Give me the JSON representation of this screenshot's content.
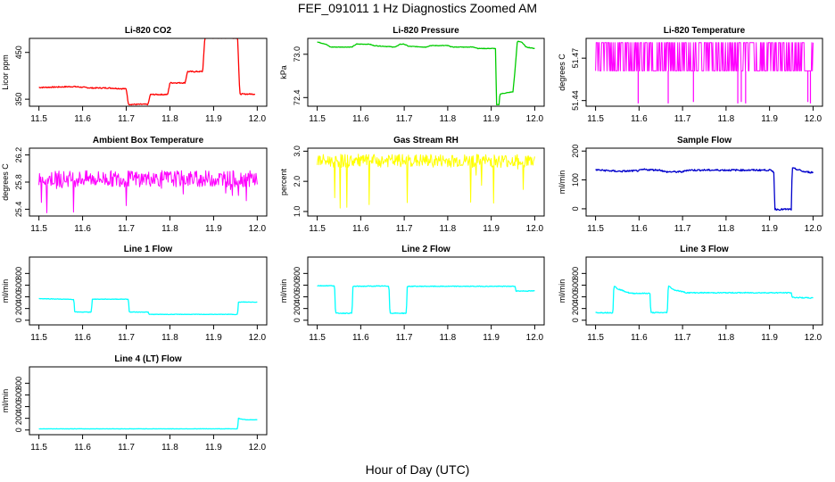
{
  "figure": {
    "title": "FEF_091011  1 Hz Diagnostics Zoomed AM",
    "xlabel": "Hour of Day (UTC)"
  },
  "chart_data": [
    {
      "type": "line",
      "title": "Li-820 CO2",
      "ylabel": "Licor ppm",
      "xlim": [
        11.5,
        12.0
      ],
      "xticks": [
        "11.5",
        "11.6",
        "11.7",
        "11.8",
        "11.9",
        "12.0"
      ],
      "ylim": [
        335,
        480
      ],
      "yticks": [
        "350",
        "450"
      ],
      "color": "#ff0000",
      "noise": 1.2,
      "series": [
        {
          "x": [
            11.5,
            11.54,
            11.58,
            11.62,
            11.66,
            11.7,
            11.705,
            11.75,
            11.755,
            11.795,
            11.8,
            11.835,
            11.84,
            11.875,
            11.88,
            11.955,
            11.96,
            11.995
          ],
          "y": [
            375,
            376,
            377,
            374,
            374,
            372,
            339,
            339,
            360,
            360,
            385,
            385,
            409,
            409,
            481,
            481,
            361,
            361
          ]
        }
      ]
    },
    {
      "type": "line",
      "title": "Li-820 Pressure",
      "ylabel": "kPa",
      "xlim": [
        11.5,
        12.0
      ],
      "xticks": [
        "11.5",
        "11.6",
        "11.7",
        "11.8",
        "11.9",
        "12.0"
      ],
      "ylim": [
        72.28,
        73.22
      ],
      "yticks": [
        "72.4",
        "73.0"
      ],
      "color": "#00cc00",
      "noise": 0.004,
      "series": [
        {
          "x": [
            11.5,
            11.52,
            11.53,
            11.58,
            11.59,
            11.62,
            11.63,
            11.68,
            11.69,
            11.7,
            11.71,
            11.75,
            11.76,
            11.8,
            11.81,
            11.86,
            11.87,
            11.9,
            11.91,
            11.912,
            11.918,
            11.92,
            11.95,
            11.955,
            11.96,
            11.97,
            11.98,
            12.0
          ],
          "y": [
            73.17,
            73.14,
            73.1,
            73.1,
            73.14,
            73.14,
            73.12,
            73.1,
            73.14,
            73.14,
            73.11,
            73.1,
            73.12,
            73.12,
            73.1,
            73.1,
            73.08,
            73.08,
            73.08,
            72.3,
            72.3,
            72.45,
            72.48,
            72.8,
            73.18,
            73.17,
            73.1,
            73.08
          ]
        }
      ]
    },
    {
      "type": "line",
      "title": "Li-820 Temperature",
      "ylabel": "degrees C",
      "xlim": [
        11.5,
        12.0
      ],
      "xticks": [
        "11.5",
        "11.6",
        "11.7",
        "11.8",
        "11.9",
        "12.0"
      ],
      "ylim": [
        51.436,
        51.484
      ],
      "yticks": [
        "51.44",
        "51.47"
      ],
      "color": "#ff00ff",
      "style": "flicker",
      "base": 51.461,
      "high": 51.481,
      "dips": [
        [
          11.598,
          51.438
        ],
        [
          11.667,
          51.438
        ],
        [
          11.725,
          51.439
        ],
        [
          11.827,
          51.438
        ],
        [
          11.835,
          51.439
        ],
        [
          11.845,
          51.438
        ],
        [
          11.988,
          51.439
        ],
        [
          11.994,
          51.438
        ]
      ],
      "series": [
        {
          "x": [
            11.5,
            12.0
          ],
          "y": [
            51.461,
            51.461
          ]
        }
      ]
    },
    {
      "type": "line",
      "title": "Ambient Box Temperature",
      "ylabel": "degrees C",
      "xlim": [
        11.5,
        12.0
      ],
      "xticks": [
        "11.5",
        "11.6",
        "11.7",
        "11.8",
        "11.9",
        "12.0"
      ],
      "ylim": [
        25.3,
        26.3
      ],
      "yticks": [
        "25.4",
        "25.8",
        "26.2"
      ],
      "color": "#ff00ff",
      "style": "noise",
      "amp": 0.12,
      "spike_amp": 0.4,
      "series": [
        {
          "x": [
            11.5,
            12.0
          ],
          "y": [
            25.85,
            25.85
          ]
        }
      ]
    },
    {
      "type": "line",
      "title": "Gas Stream RH",
      "ylabel": "percent",
      "xlim": [
        11.5,
        12.0
      ],
      "xticks": [
        "11.5",
        "11.6",
        "11.7",
        "11.8",
        "11.9",
        "12.0"
      ],
      "ylim": [
        0.85,
        3.1
      ],
      "yticks": [
        "1.0",
        "2.0",
        "3.0"
      ],
      "color": "#ffff00",
      "style": "noise",
      "amp": 0.22,
      "spike_amp": 1.5,
      "series": [
        {
          "x": [
            11.5,
            12.0
          ],
          "y": [
            2.68,
            2.68
          ]
        }
      ]
    },
    {
      "type": "line",
      "title": "Sample Flow",
      "ylabel": "ml/min",
      "xlim": [
        11.5,
        12.0
      ],
      "xticks": [
        "11.5",
        "11.6",
        "11.7",
        "11.8",
        "11.9",
        "12.0"
      ],
      "ylim": [
        -25,
        210
      ],
      "yticks": [
        "0",
        "100",
        "200"
      ],
      "color": "#0000cc",
      "noise": 3,
      "series": [
        {
          "x": [
            11.5,
            11.55,
            11.56,
            11.6,
            11.61,
            11.65,
            11.66,
            11.7,
            11.71,
            11.9,
            11.91,
            11.912,
            11.95,
            11.952,
            11.96,
            11.98,
            12.0
          ],
          "y": [
            135,
            130,
            130,
            132,
            136,
            134,
            128,
            128,
            134,
            134,
            128,
            -2,
            -2,
            140,
            138,
            128,
            126
          ]
        }
      ]
    },
    {
      "type": "line",
      "title": "Line 1 Flow",
      "ylabel": "ml/min",
      "xlim": [
        11.5,
        12.0
      ],
      "xticks": [
        "11.5",
        "11.6",
        "11.7",
        "11.8",
        "11.9",
        "12.0"
      ],
      "ylim": [
        -80,
        1080
      ],
      "yticks": [
        "0",
        "200",
        "400",
        "600",
        "800"
      ],
      "color": "#00ffff",
      "noise": 4,
      "series": [
        {
          "x": [
            11.5,
            11.58,
            11.582,
            11.62,
            11.622,
            11.705,
            11.707,
            11.75,
            11.752,
            11.955,
            11.957,
            12.0
          ],
          "y": [
            370,
            355,
            140,
            140,
            360,
            360,
            140,
            140,
            100,
            100,
            310,
            310
          ]
        }
      ]
    },
    {
      "type": "line",
      "title": "Line 2 Flow",
      "ylabel": "ml/min",
      "xlim": [
        11.5,
        12.0
      ],
      "xticks": [
        "11.5",
        "11.6",
        "11.7",
        "11.8",
        "11.9",
        "12.0"
      ],
      "ylim": [
        -80,
        1080
      ],
      "yticks": [
        "0",
        "200",
        "400",
        "600",
        "800"
      ],
      "color": "#00ffff",
      "noise": 6,
      "series": [
        {
          "x": [
            11.5,
            11.54,
            11.542,
            11.58,
            11.582,
            11.665,
            11.667,
            11.705,
            11.707,
            11.955,
            11.957,
            12.0
          ],
          "y": [
            590,
            590,
            120,
            120,
            580,
            585,
            120,
            120,
            580,
            580,
            500,
            500
          ]
        }
      ]
    },
    {
      "type": "line",
      "title": "Line 3 Flow",
      "ylabel": "ml/min",
      "xlim": [
        11.5,
        12.0
      ],
      "xticks": [
        "11.5",
        "11.6",
        "11.7",
        "11.8",
        "11.9",
        "12.0"
      ],
      "ylim": [
        -80,
        1080
      ],
      "yticks": [
        "0",
        "200",
        "400",
        "600",
        "800"
      ],
      "color": "#00ffff",
      "noise": 8,
      "series": [
        {
          "x": [
            11.5,
            11.54,
            11.542,
            11.55,
            11.58,
            11.582,
            11.625,
            11.627,
            11.665,
            11.667,
            11.68,
            11.705,
            11.707,
            11.95,
            11.952,
            12.0
          ],
          "y": [
            130,
            130,
            590,
            540,
            460,
            460,
            460,
            130,
            130,
            590,
            520,
            480,
            470,
            470,
            390,
            380
          ]
        }
      ]
    },
    {
      "type": "line",
      "title": "Line 4 (LT) Flow",
      "ylabel": "ml/min",
      "xlim": [
        11.5,
        12.0
      ],
      "xticks": [
        "11.5",
        "11.6",
        "11.7",
        "11.8",
        "11.9",
        "12.0"
      ],
      "ylim": [
        -80,
        1080
      ],
      "yticks": [
        "0",
        "200",
        "400",
        "600",
        "800"
      ],
      "color": "#00ffff",
      "noise": 2,
      "series": [
        {
          "x": [
            11.5,
            11.955,
            11.957,
            11.96,
            11.975,
            12.0
          ],
          "y": [
            20,
            20,
            210,
            190,
            175,
            175
          ]
        }
      ]
    }
  ]
}
